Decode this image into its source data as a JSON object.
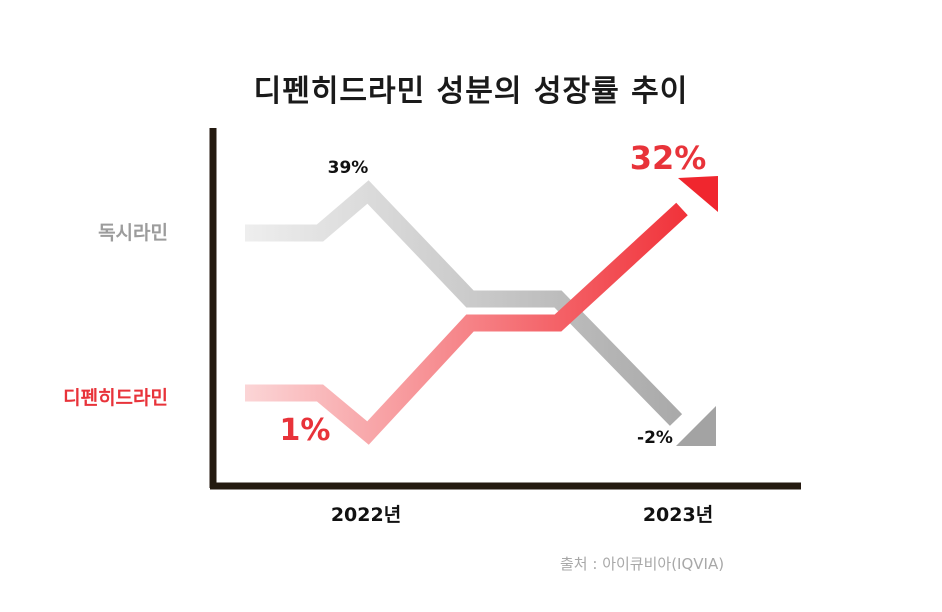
{
  "chart_data": {
    "type": "line",
    "title": "디펜히드라민 성분의 성장률 추이",
    "categories": [
      "2022년",
      "2023년"
    ],
    "series": [
      {
        "name": "독시라민",
        "color": "#9a9a9a",
        "values": [
          39,
          -2
        ],
        "labels": [
          "39%",
          "-2%"
        ]
      },
      {
        "name": "디펜히드라민",
        "color": "#e8333a",
        "values": [
          1,
          32
        ],
        "labels": [
          "1%",
          "32%"
        ]
      }
    ],
    "source": "출처 : 아이큐비아(IQVIA)"
  }
}
